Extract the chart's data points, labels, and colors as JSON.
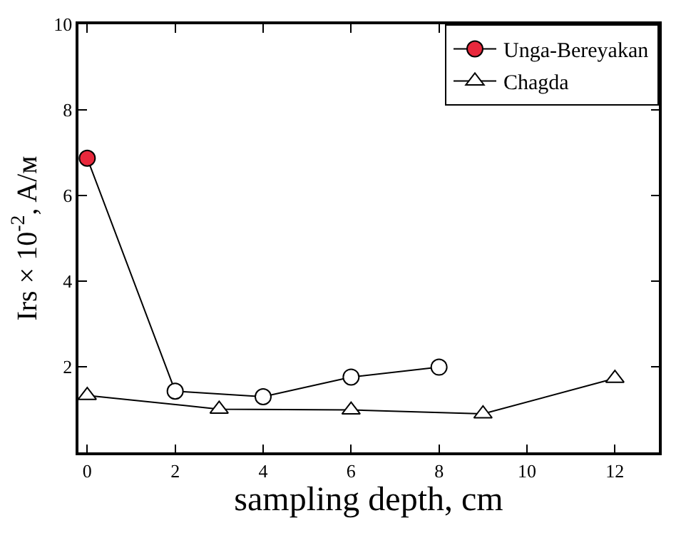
{
  "chart_data": {
    "type": "line",
    "xlabel": "sampling depth, cm",
    "ylabel": "Irs × 10$^{-2}$, A/м",
    "series": [
      {
        "name": "Unga-Bereyakan",
        "color": "#000000",
        "marker": "circle",
        "x": [
          0,
          2,
          4,
          6,
          8
        ],
        "values": [
          6.87,
          1.43,
          1.3,
          1.76,
          1.99
        ],
        "colors": [
          "#e8283c",
          "#ffffff",
          "#ffffff",
          "#ffffff",
          "#ffffff"
        ]
      },
      {
        "name": "Chagda",
        "color": "#000000",
        "marker": "triangle",
        "x": [
          0,
          3,
          6,
          9,
          12
        ],
        "values": [
          1.33,
          1.01,
          0.99,
          0.9,
          1.73
        ]
      }
    ],
    "xlim": [
      -0.2,
      13
    ],
    "xticks": [
      0,
      2,
      4,
      6,
      8,
      10,
      12
    ],
    "ylim": [
      0,
      10
    ],
    "yticks": [
      2,
      4,
      6,
      8,
      10
    ],
    "legend": "top right"
  }
}
